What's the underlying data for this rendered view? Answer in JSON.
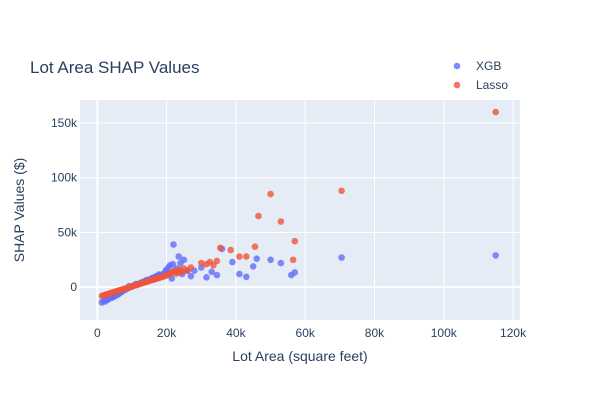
{
  "chart_data": {
    "type": "scatter",
    "title": "Lot Area SHAP Values",
    "xlabel": "Lot Area (square feet)",
    "ylabel": "SHAP Values ($)",
    "xlim": [
      -5000,
      122000
    ],
    "ylim": [
      -30000,
      171000
    ],
    "x_ticks": [
      {
        "value": 0,
        "label": "0"
      },
      {
        "value": 20000,
        "label": "20k"
      },
      {
        "value": 40000,
        "label": "40k"
      },
      {
        "value": 60000,
        "label": "60k"
      },
      {
        "value": 80000,
        "label": "80k"
      },
      {
        "value": 100000,
        "label": "100k"
      },
      {
        "value": 120000,
        "label": "120k"
      }
    ],
    "y_ticks": [
      {
        "value": 0,
        "label": "0"
      },
      {
        "value": 50000,
        "label": "50k"
      },
      {
        "value": 100000,
        "label": "100k"
      },
      {
        "value": 150000,
        "label": "150k"
      }
    ],
    "grid": true,
    "legend_position": "top-right",
    "colors": {
      "plot_bg": "#e5ecf6",
      "grid": "#ffffff",
      "text": "#2a3f5f"
    },
    "series": [
      {
        "name": "XGB",
        "color": "#636efa",
        "points": [
          [
            1300,
            -14000
          ],
          [
            1800,
            -12500
          ],
          [
            2300,
            -13000
          ],
          [
            2600,
            -11000
          ],
          [
            3000,
            -11500
          ],
          [
            3300,
            -10500
          ],
          [
            3800,
            -10000
          ],
          [
            4200,
            -9500
          ],
          [
            4600,
            -9000
          ],
          [
            5000,
            -8000
          ],
          [
            5500,
            -7500
          ],
          [
            6000,
            -6500
          ],
          [
            6500,
            -5500
          ],
          [
            7000,
            -4500
          ],
          [
            7500,
            -3000
          ],
          [
            8000,
            -2500
          ],
          [
            8500,
            -1500
          ],
          [
            9000,
            -500
          ],
          [
            9500,
            0
          ],
          [
            10000,
            500
          ],
          [
            10500,
            1500
          ],
          [
            11000,
            2000
          ],
          [
            11500,
            2500
          ],
          [
            12000,
            3000
          ],
          [
            12500,
            4000
          ],
          [
            13000,
            4500
          ],
          [
            13500,
            5000
          ],
          [
            14000,
            6000
          ],
          [
            14500,
            6500
          ],
          [
            15000,
            7000
          ],
          [
            15500,
            7500
          ],
          [
            16000,
            8500
          ],
          [
            16500,
            9000
          ],
          [
            17000,
            10000
          ],
          [
            17500,
            9500
          ],
          [
            18000,
            11000
          ],
          [
            18500,
            10000
          ],
          [
            19000,
            12000
          ],
          [
            19500,
            13000
          ],
          [
            20000,
            14500
          ],
          [
            20500,
            18000
          ],
          [
            21000,
            20000
          ],
          [
            21500,
            8000
          ],
          [
            22000,
            39000
          ],
          [
            22500,
            15000
          ],
          [
            23000,
            17000
          ],
          [
            23500,
            28000
          ],
          [
            24000,
            22000
          ],
          [
            24500,
            12000
          ],
          [
            25000,
            25000
          ],
          [
            26000,
            15000
          ],
          [
            27000,
            10000
          ],
          [
            28000,
            15000
          ],
          [
            30000,
            18000
          ],
          [
            31500,
            9000
          ],
          [
            33000,
            14000
          ],
          [
            34500,
            11000
          ],
          [
            36000,
            35000
          ],
          [
            39000,
            23000
          ],
          [
            41000,
            12000
          ],
          [
            43000,
            9500
          ],
          [
            45000,
            19000
          ],
          [
            46000,
            26000
          ],
          [
            50000,
            25000
          ],
          [
            53000,
            22000
          ],
          [
            56000,
            11000
          ],
          [
            57000,
            13500
          ],
          [
            70500,
            27000
          ],
          [
            115000,
            29000
          ],
          [
            9200,
            1000
          ],
          [
            11200,
            3000
          ],
          [
            13800,
            5500
          ],
          [
            15800,
            8200
          ],
          [
            17800,
            11500
          ],
          [
            19800,
            15500
          ],
          [
            21800,
            21000
          ],
          [
            6800,
            -4000
          ],
          [
            4400,
            -8800
          ]
        ]
      },
      {
        "name": "Lasso",
        "color": "#ef553b",
        "points": [
          [
            1300,
            -8000
          ],
          [
            1800,
            -7500
          ],
          [
            2300,
            -7000
          ],
          [
            2800,
            -6500
          ],
          [
            3300,
            -6000
          ],
          [
            3800,
            -5500
          ],
          [
            4300,
            -5000
          ],
          [
            4800,
            -4500
          ],
          [
            5300,
            -4000
          ],
          [
            5800,
            -3500
          ],
          [
            6300,
            -3000
          ],
          [
            6800,
            -2500
          ],
          [
            7300,
            -2000
          ],
          [
            7800,
            -1500
          ],
          [
            8300,
            -1000
          ],
          [
            8800,
            -500
          ],
          [
            9300,
            0
          ],
          [
            9800,
            500
          ],
          [
            10300,
            1000
          ],
          [
            10800,
            1500
          ],
          [
            11300,
            2000
          ],
          [
            11800,
            2500
          ],
          [
            12300,
            3000
          ],
          [
            12800,
            3500
          ],
          [
            13300,
            4000
          ],
          [
            13800,
            4500
          ],
          [
            14300,
            5000
          ],
          [
            14800,
            5500
          ],
          [
            15300,
            6000
          ],
          [
            15800,
            6500
          ],
          [
            16300,
            7000
          ],
          [
            16800,
            7500
          ],
          [
            17300,
            8000
          ],
          [
            17800,
            8500
          ],
          [
            18300,
            9000
          ],
          [
            18800,
            9500
          ],
          [
            19300,
            10000
          ],
          [
            19800,
            10500
          ],
          [
            20300,
            11000
          ],
          [
            20800,
            12000
          ],
          [
            21300,
            13000
          ],
          [
            21800,
            14000
          ],
          [
            22300,
            15000
          ],
          [
            22800,
            12500
          ],
          [
            23300,
            13500
          ],
          [
            23800,
            16000
          ],
          [
            24300,
            14000
          ],
          [
            25000,
            17000
          ],
          [
            26000,
            15000
          ],
          [
            27000,
            18000
          ],
          [
            30000,
            22000
          ],
          [
            31500,
            21000
          ],
          [
            32500,
            23000
          ],
          [
            33500,
            20000
          ],
          [
            34500,
            24000
          ],
          [
            35500,
            36000
          ],
          [
            38500,
            34000
          ],
          [
            41000,
            28000
          ],
          [
            43000,
            28000
          ],
          [
            45500,
            37000
          ],
          [
            46500,
            65000
          ],
          [
            50000,
            85000
          ],
          [
            53000,
            60000
          ],
          [
            56500,
            25000
          ],
          [
            57000,
            42000
          ],
          [
            70500,
            88000
          ],
          [
            115000,
            160000
          ]
        ]
      }
    ]
  }
}
